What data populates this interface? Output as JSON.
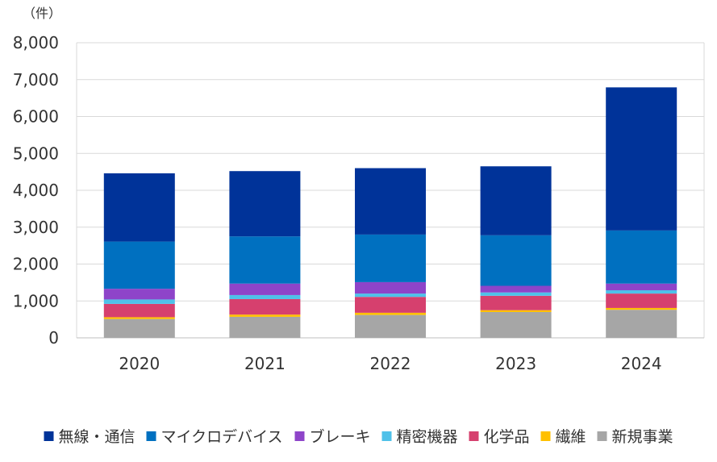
{
  "chart_data": {
    "type": "bar",
    "stacked": true,
    "unit_label": "（件）",
    "categories": [
      "2020",
      "2021",
      "2022",
      "2023",
      "2024"
    ],
    "ylim": [
      0,
      8000
    ],
    "yticks": [
      0,
      1000,
      2000,
      3000,
      4000,
      5000,
      6000,
      7000,
      8000
    ],
    "ytick_labels": [
      "0",
      "1,000",
      "2,000",
      "3,000",
      "4,000",
      "5,000",
      "6,000",
      "7,000",
      "8,000"
    ],
    "grid": true,
    "legend_position": "bottom",
    "series": [
      {
        "name": "新規事業",
        "color": "#a6a6a6",
        "values": [
          510,
          570,
          620,
          700,
          760
        ]
      },
      {
        "name": "繊維",
        "color": "#ffc000",
        "values": [
          50,
          60,
          60,
          50,
          50
        ]
      },
      {
        "name": "化学品",
        "color": "#d6406e",
        "values": [
          360,
          420,
          430,
          390,
          390
        ]
      },
      {
        "name": "精密機器",
        "color": "#4fc1e9",
        "values": [
          120,
          110,
          90,
          90,
          90
        ]
      },
      {
        "name": "ブレーキ",
        "color": "#8e44c9",
        "values": [
          290,
          310,
          310,
          180,
          180
        ]
      },
      {
        "name": "マイクロデバイス",
        "color": "#0070c0",
        "values": [
          1280,
          1280,
          1290,
          1370,
          1440
        ]
      },
      {
        "name": "無線・通信",
        "color": "#003399",
        "values": [
          1850,
          1770,
          1800,
          1870,
          3880
        ]
      }
    ],
    "legend_order": [
      "無線・通信",
      "マイクロデバイス",
      "ブレーキ",
      "精密機器",
      "化学品",
      "繊維",
      "新規事業"
    ]
  }
}
